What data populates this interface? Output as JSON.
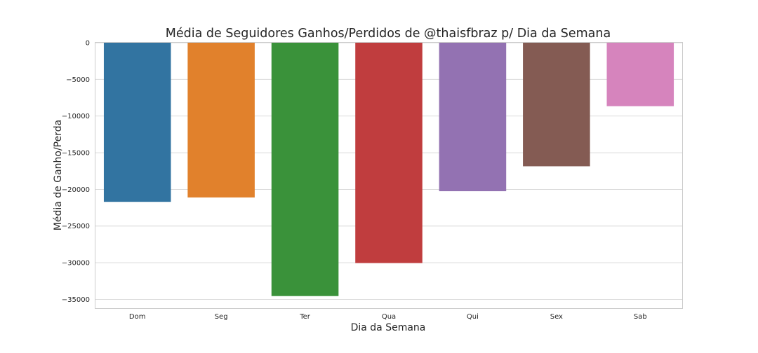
{
  "chart_data": {
    "type": "bar",
    "title": "Média de Seguidores Ganhos/Perdidos de @thaisfbraz p/ Dia da Semana",
    "xlabel": "Dia da Semana",
    "ylabel": "Média de Ganho/Perda",
    "categories": [
      "Dom",
      "Seg",
      "Ter",
      "Qua",
      "Qui",
      "Sex",
      "Sab"
    ],
    "values": [
      -21700,
      -21100,
      -34550,
      -30050,
      -20250,
      -16850,
      -8650
    ],
    "colors": [
      "#3274a1",
      "#e1812c",
      "#3a923a",
      "#c03d3e",
      "#9372b2",
      "#845b53",
      "#d684bd"
    ],
    "yticks": [
      0,
      -5000,
      -10000,
      -15000,
      -20000,
      -25000,
      -30000,
      -35000
    ],
    "ytick_labels": [
      "0",
      "−5000",
      "−10000",
      "−15000",
      "−20000",
      "−25000",
      "−30000",
      "−35000"
    ],
    "ylim": [
      -36200,
      0
    ],
    "grid": true,
    "legend": false
  }
}
